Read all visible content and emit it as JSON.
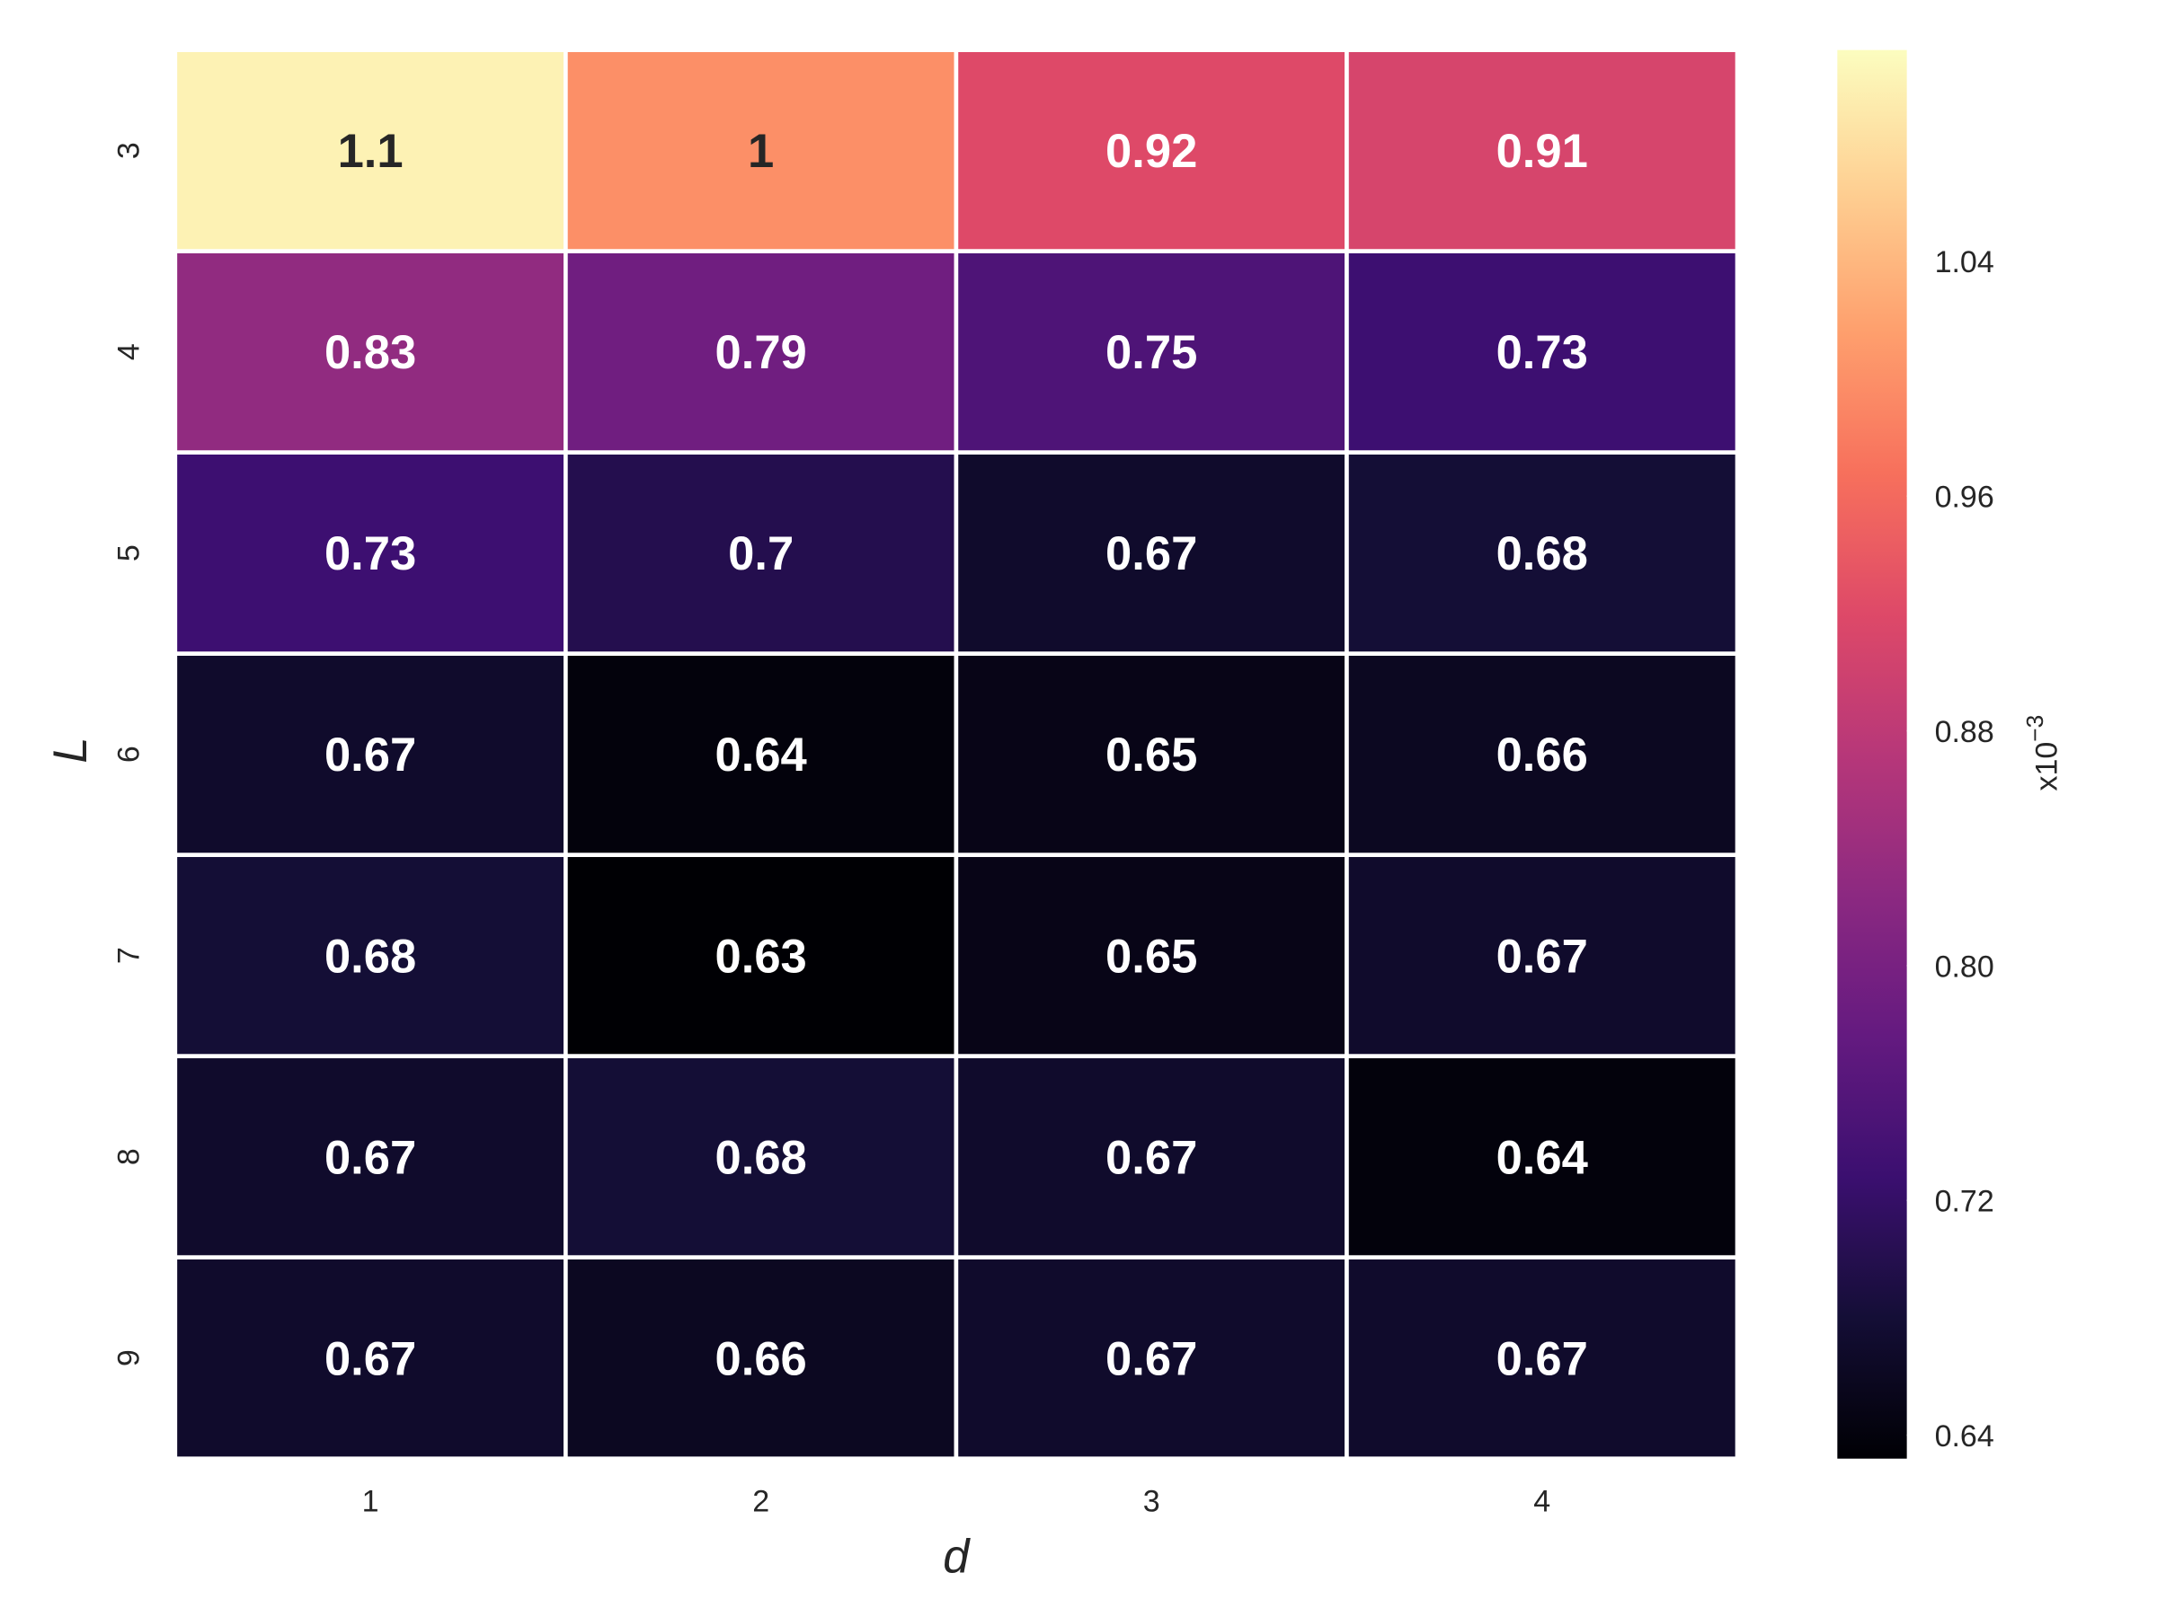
{
  "chart_data": {
    "type": "heatmap",
    "xlabel": "d",
    "ylabel": "L",
    "x_categories": [
      "1",
      "2",
      "3",
      "4"
    ],
    "y_categories": [
      "3",
      "4",
      "5",
      "6",
      "7",
      "8",
      "9"
    ],
    "values": [
      [
        1.1,
        1,
        0.92,
        0.91
      ],
      [
        0.83,
        0.79,
        0.75,
        0.73
      ],
      [
        0.73,
        0.7,
        0.67,
        0.68
      ],
      [
        0.67,
        0.64,
        0.65,
        0.66
      ],
      [
        0.68,
        0.63,
        0.65,
        0.67
      ],
      [
        0.67,
        0.68,
        0.67,
        0.64
      ],
      [
        0.67,
        0.66,
        0.67,
        0.67
      ]
    ],
    "colormap": "magma",
    "colorbar": {
      "range": [
        0.632,
        1.112
      ],
      "ticks": [
        "0.64",
        "0.72",
        "0.80",
        "0.88",
        "0.96",
        "1.04"
      ],
      "label_base": "x10",
      "label_exponent": "−3"
    },
    "annotation_colors": {
      "light": "#ffffff",
      "dark": "#262626"
    },
    "grid_line_color": "#ffffff"
  }
}
